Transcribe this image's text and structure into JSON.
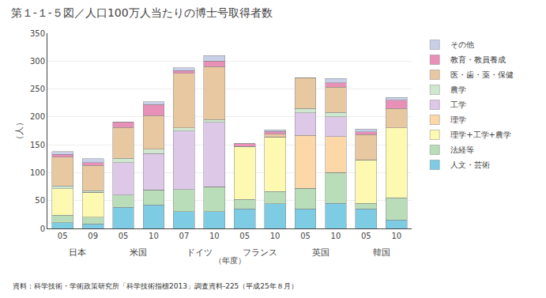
{
  "chart_data": {
    "type": "bar",
    "title": "第１-１-５図／人口100万人当たりの博士号取得者数",
    "ylabel": "（人）",
    "xlabel": "（年度）",
    "footnote": "資料：科学技術・学術政策研究所「科学技術指標2013」調査資料-225（平成25年８月）",
    "categories": [
      {
        "country": "日本",
        "year": "05"
      },
      {
        "country": "日本",
        "year": "09"
      },
      {
        "country": "米国",
        "year": "05"
      },
      {
        "country": "米国",
        "year": "10"
      },
      {
        "country": "ドイツ",
        "year": "07"
      },
      {
        "country": "ドイツ",
        "year": "10"
      },
      {
        "country": "フランス",
        "year": "05"
      },
      {
        "country": "フランス",
        "year": "10"
      },
      {
        "country": "英国",
        "year": "05"
      },
      {
        "country": "英国",
        "year": "10"
      },
      {
        "country": "韓国",
        "year": "05"
      },
      {
        "country": "韓国",
        "year": "10"
      }
    ],
    "series": [
      {
        "name": "人文・芸術",
        "color": "#7ecce3",
        "values": [
          10,
          8,
          38,
          42,
          30,
          30,
          35,
          44,
          35,
          45,
          35,
          15
        ]
      },
      {
        "name": "法経等",
        "color": "#b8ddb8",
        "values": [
          14,
          12,
          22,
          27,
          40,
          45,
          17,
          22,
          37,
          55,
          10,
          40
        ]
      },
      {
        "name": "理学+工学+農学",
        "color": "#fdf9b0",
        "values": [
          47,
          45,
          0,
          0,
          0,
          0,
          95,
          98,
          0,
          0,
          78,
          125
        ]
      },
      {
        "name": "理学",
        "color": "#fcd8a8",
        "values": [
          0,
          0,
          0,
          0,
          0,
          0,
          0,
          0,
          95,
          65,
          0,
          0
        ]
      },
      {
        "name": "工学",
        "color": "#ddc8e8",
        "values": [
          0,
          0,
          58,
          65,
          105,
          115,
          0,
          0,
          40,
          35,
          0,
          0
        ]
      },
      {
        "name": "農学",
        "color": "#d0e8d0",
        "values": [
          5,
          3,
          8,
          8,
          5,
          5,
          0,
          0,
          8,
          8,
          0,
          0
        ]
      },
      {
        "name": "医・歯・薬・保健",
        "color": "#e8c8a0",
        "values": [
          52,
          45,
          55,
          60,
          98,
          95,
          0,
          5,
          55,
          45,
          45,
          35
        ]
      },
      {
        "name": "教育・教員養成",
        "color": "#e890b8",
        "values": [
          5,
          5,
          10,
          20,
          5,
          10,
          5,
          5,
          0,
          8,
          5,
          15
        ]
      },
      {
        "name": "その他",
        "color": "#c8d0e8",
        "values": [
          5,
          7,
          0,
          5,
          5,
          10,
          0,
          3,
          0,
          8,
          5,
          5
        ]
      }
    ],
    "ylim": [
      0,
      350
    ],
    "yticks": [
      0,
      50,
      100,
      150,
      200,
      250,
      300,
      350
    ],
    "grid": true,
    "stacked": true,
    "legend": "right"
  }
}
